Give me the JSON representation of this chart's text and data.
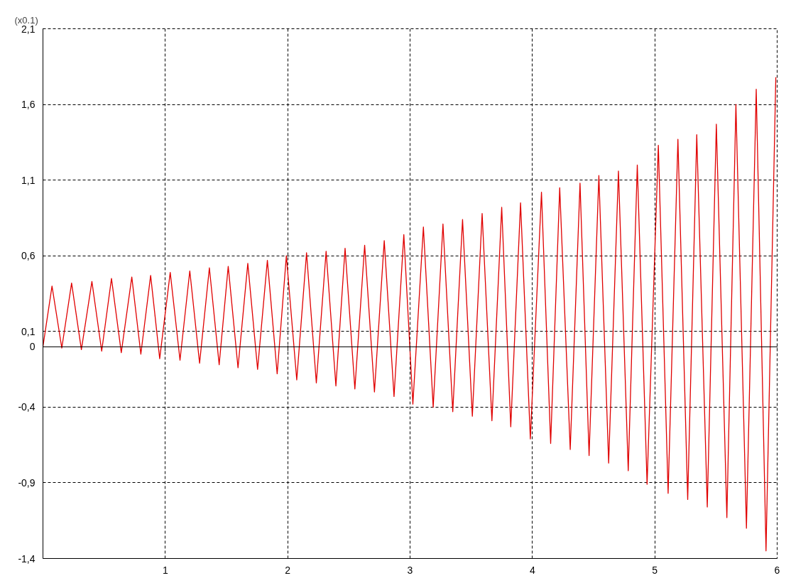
{
  "chart_data": {
    "type": "line",
    "ylabel": "(x0.1)",
    "x": [
      0,
      0.074,
      0.154,
      0.234,
      0.314,
      0.4,
      0.48,
      0.56,
      0.64,
      0.726,
      0.8,
      0.88,
      0.954,
      1.04,
      1.12,
      1.2,
      1.28,
      1.36,
      1.44,
      1.514,
      1.594,
      1.674,
      1.754,
      1.834,
      1.914,
      1.989,
      2.074,
      2.154,
      2.234,
      2.314,
      2.394,
      2.469,
      2.549,
      2.629,
      2.709,
      2.789,
      2.869,
      2.949,
      3.023,
      3.109,
      3.189,
      3.269,
      3.349,
      3.429,
      3.509,
      3.589,
      3.669,
      3.749,
      3.823,
      3.903,
      3.983,
      4.074,
      4.149,
      4.223,
      4.309,
      4.389,
      4.463,
      4.543,
      4.623,
      4.703,
      4.783,
      4.857,
      4.937,
      5.029,
      5.109,
      5.189,
      5.269,
      5.343,
      5.429,
      5.503,
      5.589,
      5.663,
      5.749,
      5.829,
      5.909,
      5.989
    ],
    "series": [
      {
        "color": "#e00000",
        "values": [
          0,
          0.4,
          -0.01,
          0.42,
          -0.02,
          0.43,
          -0.03,
          0.45,
          -0.04,
          0.46,
          -0.05,
          0.47,
          -0.08,
          0.49,
          -0.09,
          0.5,
          -0.11,
          0.52,
          -0.12,
          0.53,
          -0.14,
          0.55,
          -0.15,
          0.57,
          -0.18,
          0.6,
          -0.22,
          0.62,
          -0.24,
          0.63,
          -0.26,
          0.65,
          -0.28,
          0.67,
          -0.3,
          0.7,
          -0.33,
          0.74,
          -0.38,
          0.79,
          -0.4,
          0.81,
          -0.43,
          0.84,
          -0.46,
          0.88,
          -0.49,
          0.92,
          -0.53,
          0.95,
          -0.61,
          1.02,
          -0.64,
          1.05,
          -0.68,
          1.08,
          -0.72,
          1.13,
          -0.77,
          1.16,
          -0.82,
          1.2,
          -0.91,
          1.33,
          -0.97,
          1.37,
          -1.01,
          1.4,
          -1.06,
          1.47,
          -1.13,
          1.6,
          -1.2,
          1.7,
          -1.35,
          1.78
        ]
      }
    ],
    "xlim": [
      0,
      6
    ],
    "xticks": [
      1,
      2,
      3,
      4,
      5,
      6
    ],
    "ylim": [
      -1.4,
      2.1
    ],
    "yticks": [
      {
        "value": 2.1,
        "label": "2,1"
      },
      {
        "value": 1.6,
        "label": "1,6"
      },
      {
        "value": 1.1,
        "label": "1,1"
      },
      {
        "value": 0.6,
        "label": "0,6"
      },
      {
        "value": 0.1,
        "label": "0,1"
      },
      0,
      {
        "value": -0.4,
        "label": "-0,4"
      },
      {
        "value": -0.9,
        "label": "-0,9"
      },
      {
        "value": -1.4,
        "label": "-1,4"
      }
    ],
    "grid": true,
    "line_style": "solid",
    "marker": "none"
  }
}
